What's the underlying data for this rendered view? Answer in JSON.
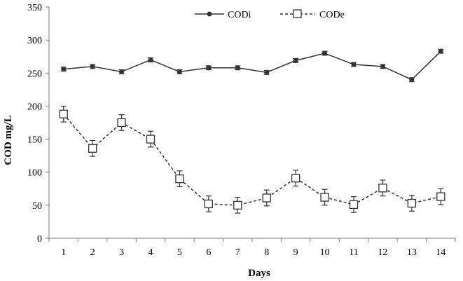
{
  "chart_data": {
    "type": "line",
    "title": "",
    "xlabel": "Days",
    "ylabel": "COD mg/L",
    "x": [
      1,
      2,
      3,
      4,
      5,
      6,
      7,
      8,
      9,
      10,
      11,
      12,
      13,
      14
    ],
    "ylim": [
      0,
      350
    ],
    "yticks": [
      0,
      50,
      100,
      150,
      200,
      250,
      300,
      350
    ],
    "grid": false,
    "legend_position": "top-right",
    "series": [
      {
        "name": "CODi",
        "line_style": "solid",
        "marker": "circle",
        "color": "#333333",
        "values": [
          256,
          260,
          252,
          270,
          252,
          258,
          258,
          251,
          269,
          280,
          263,
          260,
          240,
          283
        ],
        "error": [
          3,
          3,
          3,
          3,
          3,
          3,
          3,
          3,
          3,
          3,
          3,
          3,
          3,
          3
        ]
      },
      {
        "name": "CODe",
        "line_style": "dashed",
        "marker": "square",
        "color": "#333333",
        "values": [
          188,
          136,
          175,
          150,
          90,
          52,
          50,
          61,
          91,
          62,
          51,
          76,
          53,
          63
        ],
        "error": [
          12,
          12,
          12,
          12,
          12,
          12,
          12,
          12,
          12,
          12,
          12,
          12,
          12,
          12
        ]
      }
    ]
  }
}
